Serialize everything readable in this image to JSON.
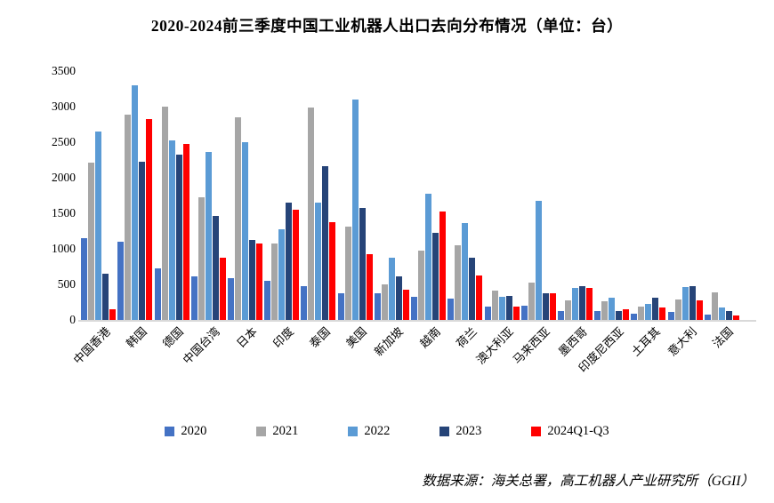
{
  "title": "2020-2024前三季度中国工业机器人出口去向分布情况（单位：台）",
  "source": "数据来源：海关总署，高工机器人产业研究所（GGII）",
  "chart_data": {
    "type": "bar",
    "title": "2020-2024前三季度中国工业机器人出口去向分布情况（单位：台）",
    "xlabel": "",
    "ylabel": "",
    "ylim": [
      0,
      3500
    ],
    "y_tick_step": 500,
    "y_ticks": [
      0,
      500,
      1000,
      1500,
      2000,
      2500,
      3000,
      3500
    ],
    "grid": false,
    "legend_position": "bottom",
    "categories": [
      "中国香港",
      "韩国",
      "德国",
      "中国台湾",
      "日本",
      "印度",
      "泰国",
      "美国",
      "新加坡",
      "越南",
      "荷兰",
      "澳大利亚",
      "马来西亚",
      "墨西哥",
      "印度尼西亚",
      "土耳其",
      "意大利",
      "法国"
    ],
    "series": [
      {
        "name": "2020",
        "color": "#4472C4",
        "values": [
          1150,
          1100,
          720,
          610,
          590,
          550,
          480,
          380,
          370,
          330,
          300,
          190,
          200,
          130,
          120,
          90,
          110,
          80
        ]
      },
      {
        "name": "2021",
        "color": "#A6A6A6",
        "values": [
          2210,
          2890,
          3000,
          1730,
          2850,
          1070,
          2990,
          1310,
          500,
          980,
          1050,
          410,
          530,
          270,
          260,
          190,
          290,
          390
        ]
      },
      {
        "name": "2022",
        "color": "#5B9BD5",
        "values": [
          2650,
          3300,
          2520,
          2360,
          2500,
          1270,
          1650,
          3100,
          870,
          1780,
          1360,
          330,
          1670,
          450,
          310,
          220,
          460,
          170
        ]
      },
      {
        "name": "2023",
        "color": "#264478",
        "values": [
          650,
          2230,
          2330,
          1460,
          1120,
          1650,
          2160,
          1570,
          610,
          1220,
          870,
          340,
          380,
          480,
          120,
          310,
          480,
          120
        ]
      },
      {
        "name": "2024Q1-Q3",
        "color": "#FF0000",
        "values": [
          150,
          2820,
          2470,
          870,
          1080,
          1550,
          1380,
          920,
          430,
          1520,
          630,
          190,
          380,
          450,
          150,
          170,
          270,
          60
        ]
      }
    ],
    "axis_line_color": "#D9D9D9"
  }
}
